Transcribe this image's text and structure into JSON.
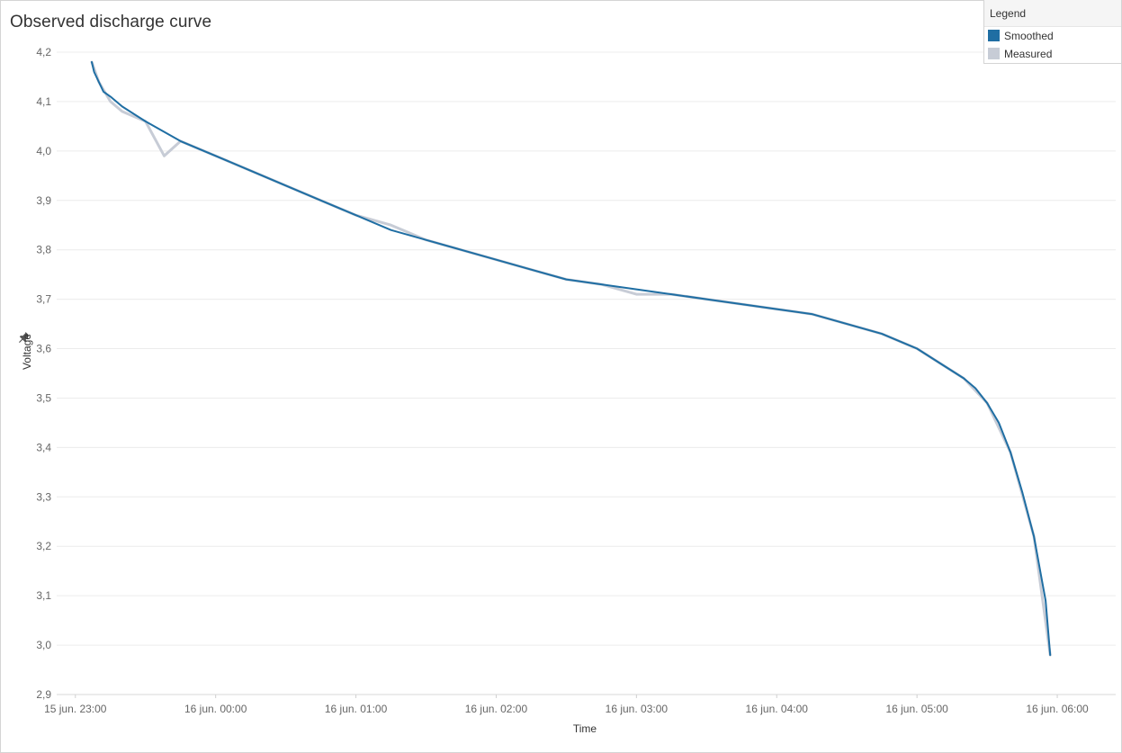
{
  "chart_data": {
    "type": "line",
    "title": "Observed discharge curve",
    "xlabel": "Time",
    "ylabel": "Voltage",
    "ylim": [
      2.9,
      4.2
    ],
    "yticks": [
      "4,2",
      "4,1",
      "4,0",
      "3,9",
      "3,8",
      "3,7",
      "3,6",
      "3,5",
      "3,4",
      "3,3",
      "3,2",
      "3,1",
      "3,0",
      "2,9"
    ],
    "ytick_values": [
      4.2,
      4.1,
      4.0,
      3.9,
      3.8,
      3.7,
      3.6,
      3.5,
      3.4,
      3.3,
      3.2,
      3.1,
      3.0,
      2.9
    ],
    "xticks": [
      "15 jun. 23:00",
      "16 jun. 00:00",
      "16 jun. 01:00",
      "16 jun. 02:00",
      "16 jun. 03:00",
      "16 jun. 04:00",
      "16 jun. 05:00",
      "16 jun. 06:00"
    ],
    "xtick_values": [
      "2021-06-15T23:00",
      "2021-06-16T00:00",
      "2021-06-16T01:00",
      "2021-06-16T02:00",
      "2021-06-16T03:00",
      "2021-06-16T04:00",
      "2021-06-16T05:00",
      "2021-06-16T06:00"
    ],
    "xlim": [
      "2021-06-15T22:52",
      "2021-06-16T06:25"
    ],
    "grid": true,
    "legend_position": "top-right",
    "legend_title": "Legend",
    "series": [
      {
        "name": "Smoothed",
        "color": "#1f6ea3",
        "x": [
          "2021-06-15T23:07",
          "2021-06-15T23:08",
          "2021-06-15T23:10",
          "2021-06-15T23:12",
          "2021-06-15T23:15",
          "2021-06-15T23:20",
          "2021-06-15T23:30",
          "2021-06-15T23:45",
          "2021-06-16T00:00",
          "2021-06-16T00:15",
          "2021-06-16T00:30",
          "2021-06-16T00:45",
          "2021-06-16T01:00",
          "2021-06-16T01:15",
          "2021-06-16T01:30",
          "2021-06-16T01:45",
          "2021-06-16T02:00",
          "2021-06-16T02:15",
          "2021-06-16T02:30",
          "2021-06-16T02:45",
          "2021-06-16T03:00",
          "2021-06-16T03:15",
          "2021-06-16T03:30",
          "2021-06-16T03:45",
          "2021-06-16T04:00",
          "2021-06-16T04:15",
          "2021-06-16T04:30",
          "2021-06-16T04:45",
          "2021-06-16T05:00",
          "2021-06-16T05:10",
          "2021-06-16T05:20",
          "2021-06-16T05:25",
          "2021-06-16T05:30",
          "2021-06-16T05:35",
          "2021-06-16T05:40",
          "2021-06-16T05:45",
          "2021-06-16T05:50",
          "2021-06-16T05:55",
          "2021-06-16T05:57"
        ],
        "y": [
          4.18,
          4.16,
          4.14,
          4.12,
          4.11,
          4.09,
          4.06,
          4.02,
          3.99,
          3.96,
          3.93,
          3.9,
          3.87,
          3.84,
          3.82,
          3.8,
          3.78,
          3.76,
          3.74,
          3.73,
          3.72,
          3.71,
          3.7,
          3.69,
          3.68,
          3.67,
          3.65,
          3.63,
          3.6,
          3.57,
          3.54,
          3.52,
          3.49,
          3.45,
          3.39,
          3.31,
          3.22,
          3.09,
          2.98
        ]
      },
      {
        "name": "Measured",
        "color": "#c7ccd6",
        "x": [
          "2021-06-15T23:07",
          "2021-06-15T23:10",
          "2021-06-15T23:15",
          "2021-06-15T23:20",
          "2021-06-15T23:30",
          "2021-06-15T23:38",
          "2021-06-15T23:45",
          "2021-06-16T00:00",
          "2021-06-16T00:15",
          "2021-06-16T00:30",
          "2021-06-16T00:45",
          "2021-06-16T01:00",
          "2021-06-16T01:15",
          "2021-06-16T01:30",
          "2021-06-16T01:45",
          "2021-06-16T02:00",
          "2021-06-16T02:15",
          "2021-06-16T02:30",
          "2021-06-16T02:45",
          "2021-06-16T03:00",
          "2021-06-16T03:15",
          "2021-06-16T03:30",
          "2021-06-16T03:45",
          "2021-06-16T04:00",
          "2021-06-16T04:15",
          "2021-06-16T04:30",
          "2021-06-16T04:45",
          "2021-06-16T05:00",
          "2021-06-16T05:10",
          "2021-06-16T05:20",
          "2021-06-16T05:30",
          "2021-06-16T05:40",
          "2021-06-16T05:50",
          "2021-06-16T05:57"
        ],
        "y": [
          4.18,
          4.14,
          4.1,
          4.08,
          4.06,
          3.99,
          4.02,
          3.99,
          3.96,
          3.93,
          3.9,
          3.87,
          3.85,
          3.82,
          3.8,
          3.78,
          3.76,
          3.74,
          3.73,
          3.71,
          3.71,
          3.7,
          3.69,
          3.68,
          3.67,
          3.65,
          3.63,
          3.6,
          3.57,
          3.54,
          3.49,
          3.39,
          3.22,
          2.98
        ]
      }
    ]
  }
}
